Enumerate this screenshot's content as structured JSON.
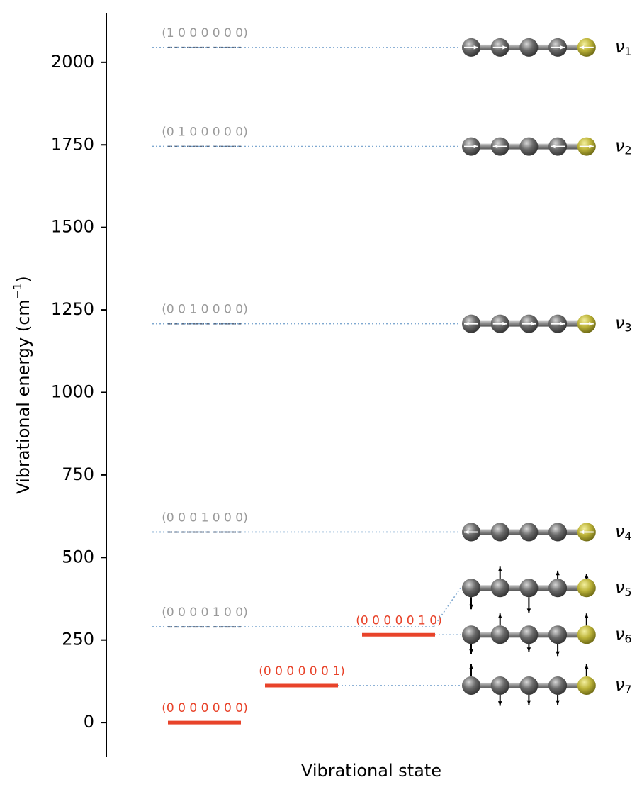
{
  "chart_data": {
    "type": "energy-levels",
    "y_label": "Vibrational energy (cm",
    "y_label_sup": "−1",
    "y_label_end": ")",
    "x_label": "Vibrational state",
    "ylim": [
      -105,
      2150
    ],
    "yticks": [
      0,
      250,
      500,
      750,
      1000,
      1250,
      1500,
      1750,
      2000
    ],
    "levels": [
      {
        "label": "(1 0 0 0 0 0 0)",
        "energy": 2045,
        "color": "#9a9a9a"
      },
      {
        "label": "(0 1 0 0 0 0 0)",
        "energy": 1745,
        "color": "#9a9a9a"
      },
      {
        "label": "(0 0 1 0 0 0 0)",
        "energy": 1208,
        "color": "#9a9a9a"
      },
      {
        "label": "(0 0 0 1 0 0 0)",
        "energy": 577,
        "color": "#9a9a9a"
      },
      {
        "label": "(0 0 0 0 1 0 0)",
        "energy": 290,
        "color": "#9a9a9a"
      },
      {
        "label": "(0 0 0 0 0 1 0)",
        "energy": 266,
        "color": "#e8432a"
      },
      {
        "label": "(0 0 0 0 0 0 1)",
        "energy": 112,
        "color": "#e8432a"
      },
      {
        "label": "(0 0 0 0 0 0 0)",
        "energy": 0,
        "color": "#e8432a"
      }
    ],
    "mode_symbol": "ν",
    "modes": [
      "1",
      "2",
      "3",
      "4",
      "5",
      "6",
      "7"
    ]
  }
}
